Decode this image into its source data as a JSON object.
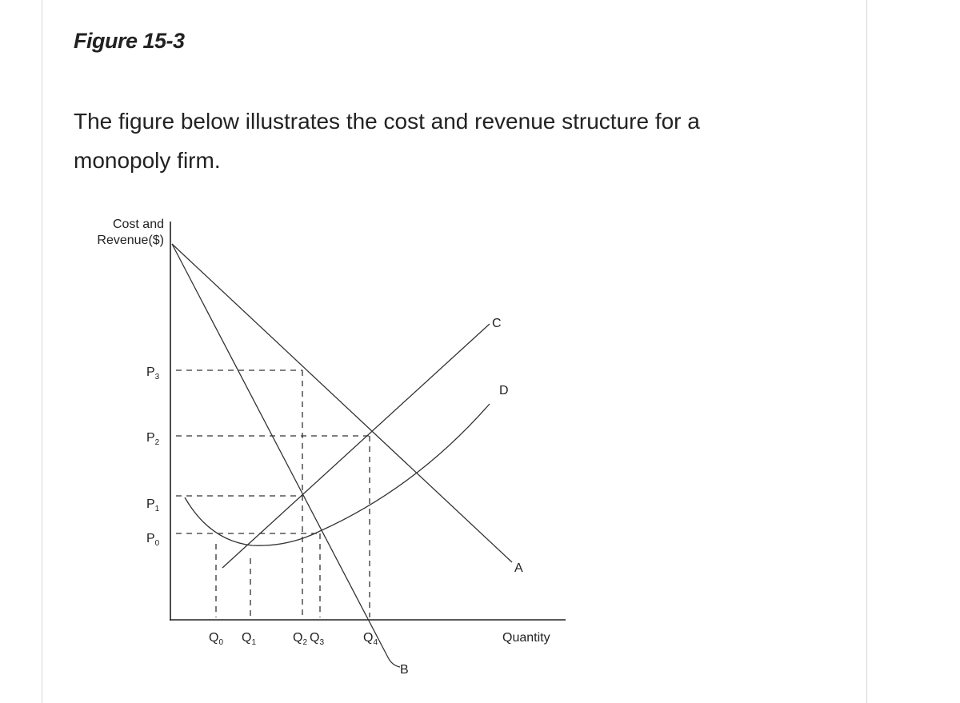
{
  "header": {
    "title": "Figure 15-3"
  },
  "body": {
    "lines": [
      "The figure below illustrates the cost and revenue structure for a",
      "monopoly firm."
    ]
  },
  "figure": {
    "y_axis_label": [
      "Cost and",
      "Revenue($)"
    ],
    "x_axis_label": "Quantity",
    "price_labels": [
      {
        "base": "P",
        "sub": "3"
      },
      {
        "base": "P",
        "sub": "2"
      },
      {
        "base": "P",
        "sub": "1"
      },
      {
        "base": "P",
        "sub": "0"
      }
    ],
    "quantity_labels": [
      {
        "base": "Q",
        "sub": "0"
      },
      {
        "base": "Q",
        "sub": "1"
      },
      {
        "base": "Q",
        "sub": "2"
      },
      {
        "base": "Q",
        "sub": "3"
      },
      {
        "base": "Q",
        "sub": "4"
      }
    ],
    "curve_labels": [
      "C",
      "D",
      "A",
      "B"
    ]
  }
}
